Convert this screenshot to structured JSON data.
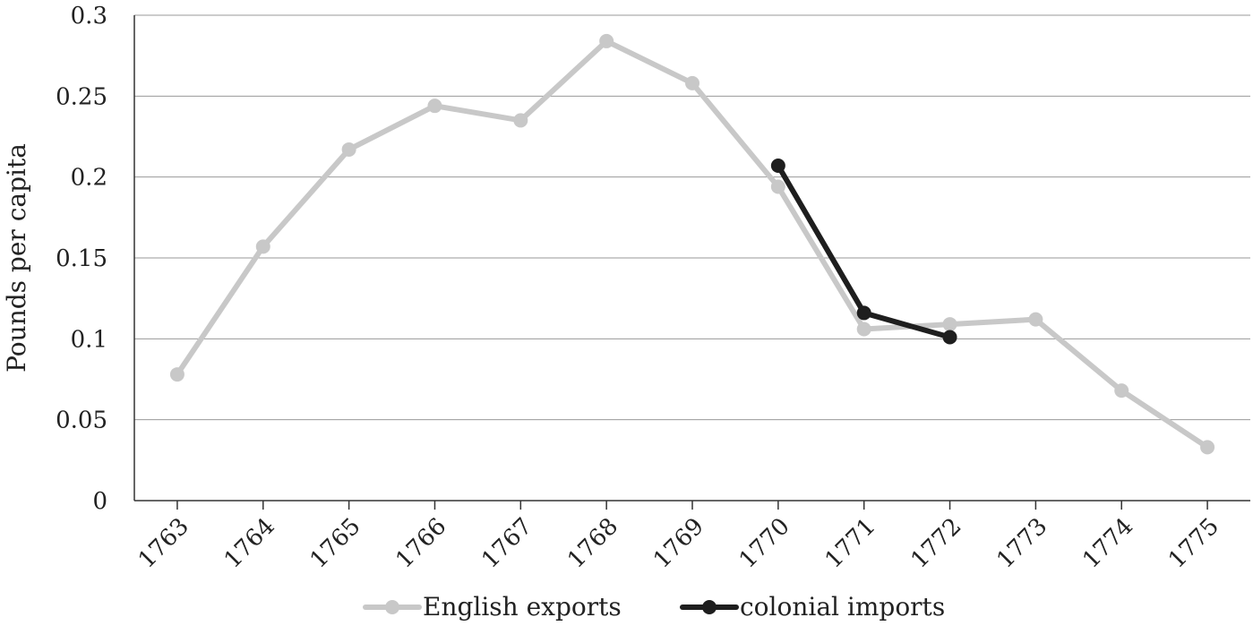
{
  "chart_data": {
    "type": "line",
    "title": "",
    "xlabel": "",
    "ylabel": "Pounds per capita",
    "ylim": [
      0,
      0.3
    ],
    "y_ticks": [
      "0",
      "0.05",
      "0.1",
      "0.15",
      "0.2",
      "0.25",
      "0.3"
    ],
    "y_tick_values": [
      0,
      0.05,
      0.1,
      0.15,
      0.2,
      0.25,
      0.3
    ],
    "categories": [
      "1763",
      "1764",
      "1765",
      "1766",
      "1767",
      "1768",
      "1769",
      "1770",
      "1771",
      "1772",
      "1773",
      "1774",
      "1775"
    ],
    "grid": "horizontal",
    "legend_position": "bottom",
    "series": [
      {
        "name": "English exports",
        "color": "#c8c8c8",
        "values": [
          0.078,
          0.157,
          0.217,
          0.244,
          0.235,
          0.284,
          0.258,
          0.194,
          0.106,
          0.109,
          0.112,
          0.068,
          0.033
        ]
      },
      {
        "name": "colonial imports",
        "color": "#1e1e1e",
        "values": [
          null,
          null,
          null,
          null,
          null,
          null,
          null,
          0.207,
          0.116,
          0.101,
          null,
          null,
          null
        ]
      }
    ]
  }
}
